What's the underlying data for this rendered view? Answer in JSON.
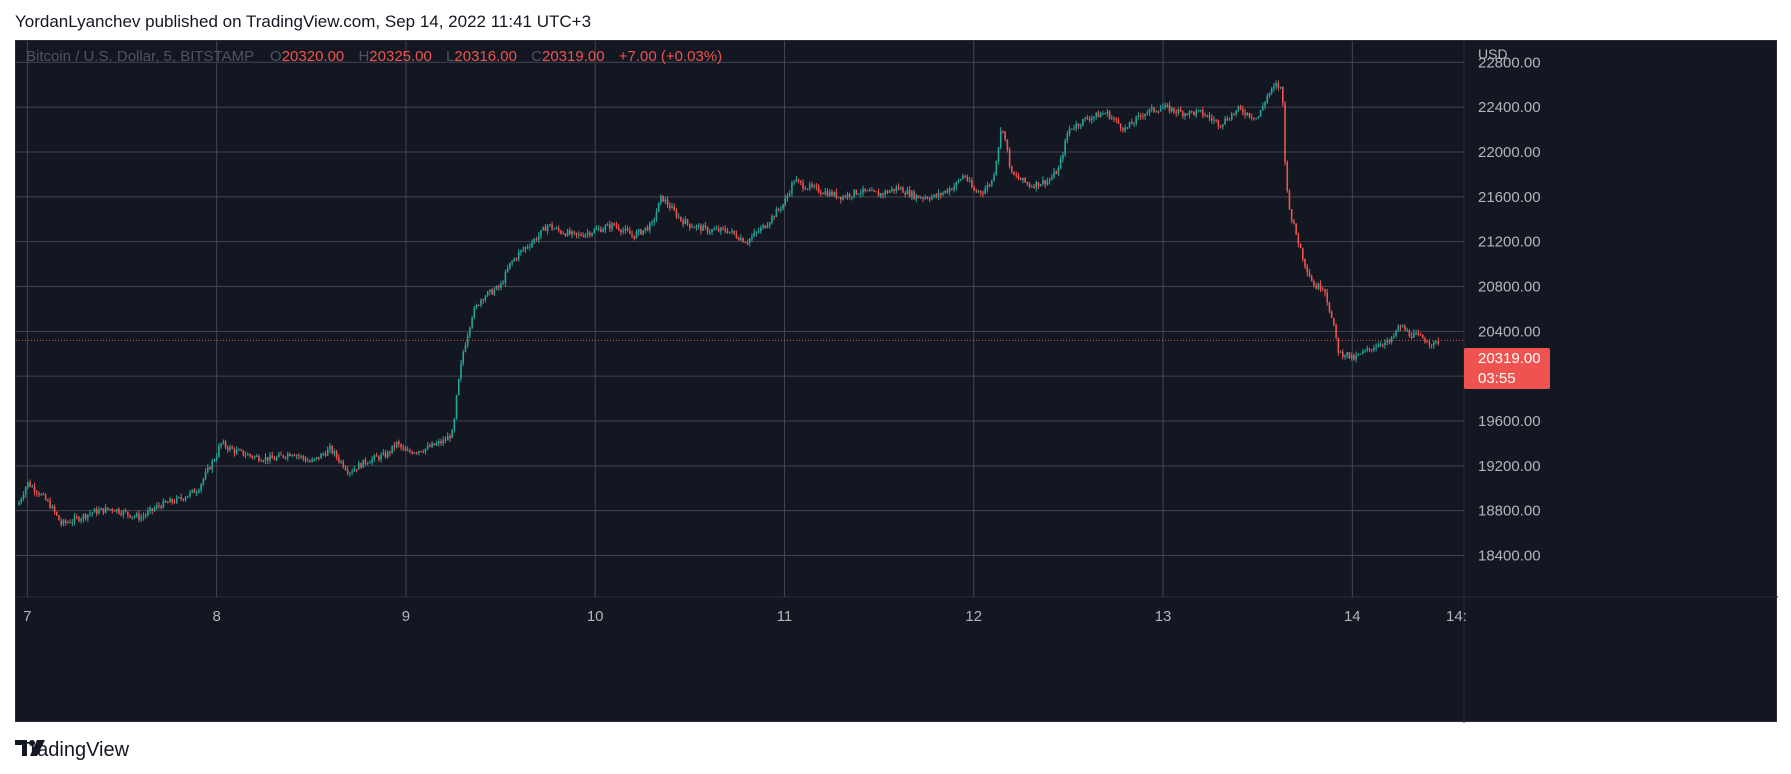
{
  "header": {
    "publisher": "YordanLyanchev published on TradingView.com, Sep 14, 2022 11:41 UTC+3"
  },
  "legend": {
    "symbol": "Bitcoin / U.S. Dollar, 5, BITSTAMP",
    "o_label": "O",
    "o_value": "20320.00",
    "h_label": "H",
    "h_value": "20325.00",
    "l_label": "L",
    "l_value": "20316.00",
    "c_label": "C",
    "c_value": "20319.00",
    "change": "+7.00 (+0.03%)"
  },
  "price_tag": {
    "price": "20319.00",
    "countdown": "03:55"
  },
  "footer": {
    "brand": "TradingView"
  },
  "colors": {
    "background": "#131722",
    "up": "#26a69a",
    "down": "#ef5350",
    "grid": "#434651",
    "axis_text": "#b2b5be",
    "price_tag": "#ef5350"
  },
  "chart_data": {
    "type": "candlestick",
    "title": "Bitcoin / U.S. Dollar, 5, BITSTAMP",
    "y_unit": "USD",
    "ylim": [
      18030,
      22990
    ],
    "y_ticks": [
      "22800.00",
      "22400.00",
      "22000.00",
      "21600.00",
      "21200.00",
      "20800.00",
      "20400.00",
      "20000.00",
      "19600.00",
      "19200.00",
      "18800.00",
      "18400.00"
    ],
    "x_ticks": [
      "7",
      "8",
      "9",
      "10",
      "11",
      "12",
      "13",
      "14",
      "14:"
    ],
    "xlim": [
      6.94,
      14.59
    ],
    "last_price": 20319.0,
    "series": [
      {
        "path": [
          [
            6.95,
            18850
          ],
          [
            7.0,
            19050
          ],
          [
            7.05,
            18980
          ],
          [
            7.12,
            18850
          ],
          [
            7.18,
            18680
          ],
          [
            7.25,
            18720
          ],
          [
            7.35,
            18790
          ],
          [
            7.45,
            18820
          ],
          [
            7.55,
            18760
          ],
          [
            7.6,
            18740
          ],
          [
            7.7,
            18850
          ],
          [
            7.8,
            18900
          ],
          [
            7.9,
            18990
          ],
          [
            7.95,
            19150
          ],
          [
            8.0,
            19300
          ],
          [
            8.02,
            19400
          ],
          [
            8.1,
            19330
          ],
          [
            8.2,
            19280
          ],
          [
            8.3,
            19260
          ],
          [
            8.4,
            19320
          ],
          [
            8.5,
            19230
          ],
          [
            8.6,
            19350
          ],
          [
            8.7,
            19150
          ],
          [
            8.8,
            19250
          ],
          [
            8.9,
            19300
          ],
          [
            8.95,
            19400
          ],
          [
            9.0,
            19320
          ],
          [
            9.1,
            19350
          ],
          [
            9.2,
            19420
          ],
          [
            9.25,
            19500
          ],
          [
            9.27,
            19850
          ],
          [
            9.3,
            20200
          ],
          [
            9.35,
            20550
          ],
          [
            9.4,
            20700
          ],
          [
            9.45,
            20750
          ],
          [
            9.5,
            20800
          ],
          [
            9.55,
            21000
          ],
          [
            9.6,
            21100
          ],
          [
            9.7,
            21250
          ],
          [
            9.75,
            21350
          ],
          [
            9.8,
            21300
          ],
          [
            9.9,
            21250
          ],
          [
            10.0,
            21300
          ],
          [
            10.1,
            21350
          ],
          [
            10.2,
            21250
          ],
          [
            10.3,
            21350
          ],
          [
            10.35,
            21600
          ],
          [
            10.45,
            21400
          ],
          [
            10.5,
            21350
          ],
          [
            10.6,
            21300
          ],
          [
            10.7,
            21300
          ],
          [
            10.8,
            21200
          ],
          [
            10.9,
            21350
          ],
          [
            10.95,
            21450
          ],
          [
            11.0,
            21550
          ],
          [
            11.05,
            21750
          ],
          [
            11.1,
            21700
          ],
          [
            11.2,
            21650
          ],
          [
            11.3,
            21600
          ],
          [
            11.4,
            21650
          ],
          [
            11.5,
            21620
          ],
          [
            11.6,
            21680
          ],
          [
            11.7,
            21600
          ],
          [
            11.8,
            21600
          ],
          [
            11.9,
            21700
          ],
          [
            11.95,
            21800
          ],
          [
            12.0,
            21650
          ],
          [
            12.05,
            21650
          ],
          [
            12.1,
            21750
          ],
          [
            12.15,
            22250
          ],
          [
            12.2,
            21800
          ],
          [
            12.3,
            21700
          ],
          [
            12.4,
            21750
          ],
          [
            12.45,
            21850
          ],
          [
            12.5,
            22200
          ],
          [
            12.6,
            22300
          ],
          [
            12.7,
            22350
          ],
          [
            12.8,
            22200
          ],
          [
            12.9,
            22350
          ],
          [
            13.0,
            22400
          ],
          [
            13.1,
            22350
          ],
          [
            13.2,
            22350
          ],
          [
            13.3,
            22250
          ],
          [
            13.4,
            22380
          ],
          [
            13.5,
            22300
          ],
          [
            13.55,
            22500
          ],
          [
            13.6,
            22600
          ],
          [
            13.63,
            22550
          ],
          [
            13.65,
            21700
          ],
          [
            13.68,
            21400
          ],
          [
            13.75,
            21000
          ],
          [
            13.8,
            20800
          ],
          [
            13.85,
            20800
          ],
          [
            13.9,
            20450
          ],
          [
            13.93,
            20200
          ],
          [
            13.97,
            20200
          ],
          [
            14.0,
            20150
          ],
          [
            14.05,
            20200
          ],
          [
            14.1,
            20250
          ],
          [
            14.15,
            20300
          ],
          [
            14.2,
            20300
          ],
          [
            14.25,
            20450
          ],
          [
            14.3,
            20380
          ],
          [
            14.35,
            20350
          ],
          [
            14.4,
            20320
          ],
          [
            14.43,
            20280
          ],
          [
            14.46,
            20319
          ]
        ]
      }
    ]
  }
}
